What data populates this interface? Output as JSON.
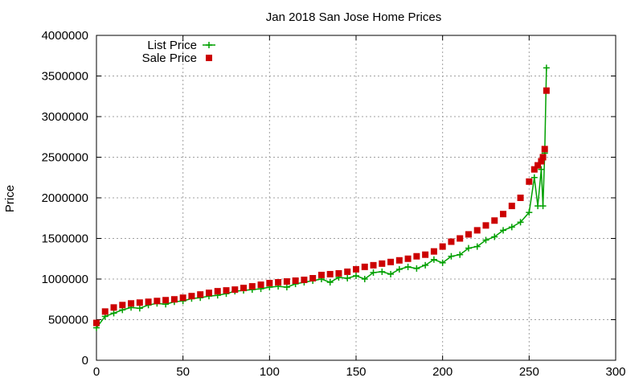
{
  "chart_data": {
    "type": "line",
    "title": "Jan 2018 San Jose Home Prices",
    "ylabel": "Price",
    "xlabel": "",
    "xlim": [
      0,
      300
    ],
    "ylim": [
      0,
      4000000
    ],
    "xticks": [
      0,
      50,
      100,
      150,
      200,
      250,
      300
    ],
    "yticks": [
      0,
      500000,
      1000000,
      1500000,
      2000000,
      2500000,
      3000000,
      3500000,
      4000000
    ],
    "grid": true,
    "legend_position": "top-left",
    "series": [
      {
        "name": "List Price",
        "color": "#00a000",
        "style": "lines+points",
        "marker": "plus",
        "x": [
          0,
          5,
          10,
          15,
          20,
          25,
          30,
          35,
          40,
          45,
          50,
          55,
          60,
          65,
          70,
          75,
          80,
          85,
          90,
          95,
          100,
          105,
          110,
          115,
          120,
          125,
          130,
          135,
          140,
          145,
          150,
          155,
          160,
          165,
          170,
          175,
          180,
          185,
          190,
          195,
          200,
          205,
          210,
          215,
          220,
          225,
          230,
          235,
          240,
          245,
          250,
          253,
          255,
          257,
          258,
          259,
          260
        ],
        "y": [
          400000,
          540000,
          580000,
          620000,
          650000,
          640000,
          680000,
          700000,
          690000,
          720000,
          730000,
          760000,
          770000,
          790000,
          800000,
          820000,
          850000,
          860000,
          870000,
          880000,
          900000,
          910000,
          900000,
          940000,
          960000,
          980000,
          1000000,
          960000,
          1020000,
          1010000,
          1040000,
          1000000,
          1080000,
          1090000,
          1060000,
          1120000,
          1150000,
          1130000,
          1170000,
          1240000,
          1200000,
          1280000,
          1300000,
          1380000,
          1400000,
          1480000,
          1520000,
          1600000,
          1640000,
          1700000,
          1820000,
          2250000,
          1900000,
          2350000,
          1900000,
          2550000,
          3600000
        ]
      },
      {
        "name": "Sale Price",
        "color": "#cc0000",
        "style": "points",
        "marker": "square",
        "x": [
          0,
          5,
          10,
          15,
          20,
          25,
          30,
          35,
          40,
          45,
          50,
          55,
          60,
          65,
          70,
          75,
          80,
          85,
          90,
          95,
          100,
          105,
          110,
          115,
          120,
          125,
          130,
          135,
          140,
          145,
          150,
          155,
          160,
          165,
          170,
          175,
          180,
          185,
          190,
          195,
          200,
          205,
          210,
          215,
          220,
          225,
          230,
          235,
          240,
          245,
          250,
          253,
          255,
          257,
          258,
          259,
          260
        ],
        "y": [
          460000,
          600000,
          650000,
          680000,
          700000,
          710000,
          720000,
          730000,
          740000,
          750000,
          770000,
          790000,
          810000,
          830000,
          850000,
          860000,
          870000,
          890000,
          910000,
          930000,
          950000,
          960000,
          970000,
          980000,
          990000,
          1010000,
          1050000,
          1060000,
          1070000,
          1090000,
          1120000,
          1150000,
          1170000,
          1190000,
          1210000,
          1230000,
          1250000,
          1280000,
          1300000,
          1340000,
          1400000,
          1460000,
          1500000,
          1550000,
          1600000,
          1660000,
          1720000,
          1800000,
          1900000,
          2000000,
          2200000,
          2350000,
          2400000,
          2450000,
          2500000,
          2600000,
          3320000
        ]
      }
    ]
  }
}
